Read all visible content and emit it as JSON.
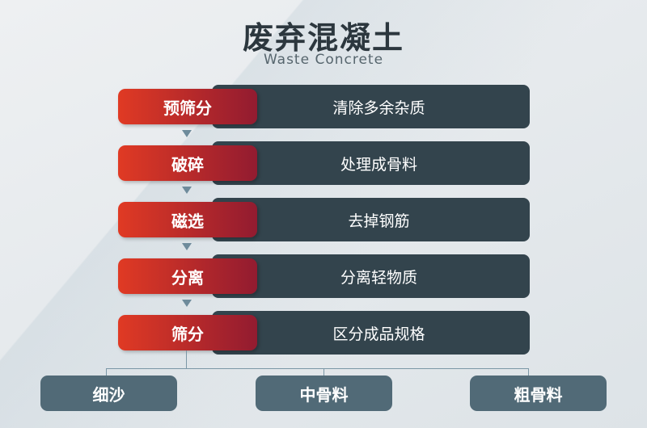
{
  "title": "废弃混凝土",
  "subtitle": "Waste Concrete",
  "steps": [
    {
      "label": "预筛分",
      "desc": "清除多余杂质"
    },
    {
      "label": "破碎",
      "desc": "处理成骨料"
    },
    {
      "label": "磁选",
      "desc": "去掉钢筋"
    },
    {
      "label": "分离",
      "desc": "分离轻物质"
    },
    {
      "label": "筛分",
      "desc": "区分成品规格"
    }
  ],
  "outputs": [
    "细沙",
    "中骨料",
    "粗骨料"
  ],
  "colors": {
    "step_red": "#e03a24",
    "step_dark": "#33444d",
    "output": "#516a77",
    "connector": "#7b97a6"
  }
}
